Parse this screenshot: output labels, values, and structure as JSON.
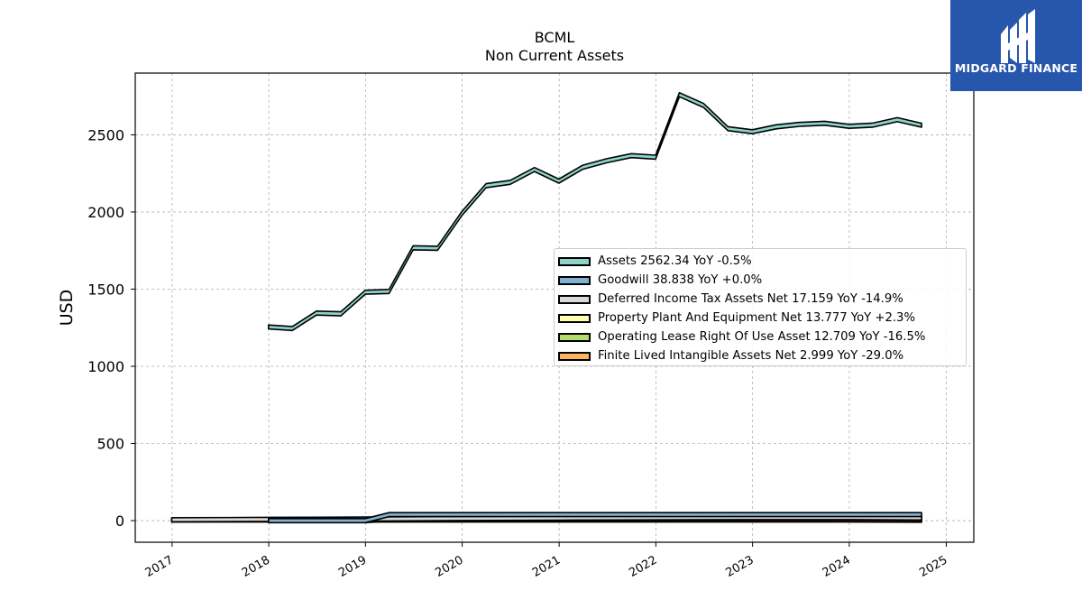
{
  "logo": {
    "text": "MIDGARD FINANCE",
    "color": "#2757ac"
  },
  "chart_data": {
    "type": "area",
    "title": "BCML",
    "subtitle": "Non Current  Assets",
    "xlabel": "",
    "ylabel": "USD",
    "x_ticks": [
      "2017",
      "2018",
      "2019",
      "2020",
      "2021",
      "2022",
      "2023",
      "2024",
      "2025"
    ],
    "y_ticks": [
      "0",
      "500",
      "1000",
      "1500",
      "2000",
      "2500"
    ],
    "ylim": [
      -140,
      2900
    ],
    "grid": true,
    "legend_position": "center-right",
    "series": [
      {
        "name": "Assets",
        "legend": "Assets  2562.34 YoY -0.5%",
        "color": "#8dd3c7",
        "points": [
          [
            "2017-12-31",
            1255
          ],
          [
            "2018-03-31",
            1245
          ],
          [
            "2018-06-30",
            1345
          ],
          [
            "2018-09-30",
            1340
          ],
          [
            "2018-12-31",
            1480
          ],
          [
            "2019-03-31",
            1485
          ],
          [
            "2019-06-30",
            1768
          ],
          [
            "2019-09-30",
            1765
          ],
          [
            "2019-12-31",
            1990
          ],
          [
            "2020-03-31",
            2170
          ],
          [
            "2020-06-30",
            2192
          ],
          [
            "2020-09-30",
            2275
          ],
          [
            "2020-12-31",
            2200
          ],
          [
            "2021-03-31",
            2290
          ],
          [
            "2021-06-30",
            2332
          ],
          [
            "2021-09-30",
            2365
          ],
          [
            "2021-12-31",
            2355
          ],
          [
            "2022-03-31",
            2760
          ],
          [
            "2022-06-30",
            2690
          ],
          [
            "2022-09-30",
            2540
          ],
          [
            "2022-12-31",
            2520
          ],
          [
            "2023-03-31",
            2552
          ],
          [
            "2023-06-30",
            2568
          ],
          [
            "2023-09-30",
            2575
          ],
          [
            "2023-12-31",
            2555
          ],
          [
            "2024-03-31",
            2563
          ],
          [
            "2024-06-30",
            2598
          ],
          [
            "2024-09-30",
            2562
          ]
        ]
      },
      {
        "name": "Goodwill",
        "legend": "Goodwill  38.838 YoY +0.0%",
        "color": "#80b1d3",
        "points": [
          [
            "2017-12-31",
            0
          ],
          [
            "2018-12-31",
            0
          ],
          [
            "2019-03-31",
            38.8
          ],
          [
            "2019-06-30",
            38.8
          ],
          [
            "2020-03-31",
            38.8
          ],
          [
            "2021-12-31",
            38.8
          ],
          [
            "2023-12-31",
            38.8
          ],
          [
            "2024-09-30",
            38.838
          ]
        ]
      },
      {
        "name": "Deferred Income Tax Assets Net",
        "legend": "Deferred Income Tax Assets Net  17.159 YoY -14.9%",
        "color": "#d9d9d9",
        "points": [
          [
            "2016-12-31",
            6
          ],
          [
            "2017-12-31",
            8
          ],
          [
            "2018-12-31",
            10
          ],
          [
            "2019-12-31",
            14
          ],
          [
            "2020-12-31",
            16
          ],
          [
            "2021-12-31",
            18
          ],
          [
            "2022-12-31",
            20
          ],
          [
            "2023-12-31",
            20
          ],
          [
            "2024-09-30",
            17.159
          ]
        ]
      },
      {
        "name": "Property Plant And Equipment Net",
        "legend": "Property Plant And Equipment Net  13.777 YoY +2.3%",
        "color": "#ffffb3",
        "points": [
          [
            "2016-12-31",
            5
          ],
          [
            "2017-12-31",
            7
          ],
          [
            "2018-12-31",
            9
          ],
          [
            "2019-12-31",
            11
          ],
          [
            "2020-12-31",
            12
          ],
          [
            "2021-12-31",
            13
          ],
          [
            "2022-12-31",
            13
          ],
          [
            "2023-12-31",
            13.5
          ],
          [
            "2024-09-30",
            13.777
          ]
        ]
      },
      {
        "name": "Operating Lease Right Of Use Asset",
        "legend": "Operating Lease Right Of Use Asset  12.709 YoY -16.5%",
        "color": "#b3de69",
        "points": [
          [
            "2018-12-31",
            0
          ],
          [
            "2019-03-31",
            10
          ],
          [
            "2019-12-31",
            12
          ],
          [
            "2020-12-31",
            13
          ],
          [
            "2021-12-31",
            14
          ],
          [
            "2022-12-31",
            15
          ],
          [
            "2023-12-31",
            15.2
          ],
          [
            "2024-09-30",
            12.709
          ]
        ]
      },
      {
        "name": "Finite Lived Intangible Assets Net",
        "legend": "Finite Lived Intangible Assets Net  2.999 YoY -29.0%",
        "color": "#fdb462",
        "points": [
          [
            "2016-12-31",
            4
          ],
          [
            "2017-12-31",
            4
          ],
          [
            "2018-12-31",
            4
          ],
          [
            "2019-12-31",
            4
          ],
          [
            "2020-12-31",
            4
          ],
          [
            "2021-12-31",
            4
          ],
          [
            "2022-12-31",
            4
          ],
          [
            "2023-12-31",
            4
          ],
          [
            "2024-09-30",
            2.999
          ]
        ]
      }
    ]
  }
}
